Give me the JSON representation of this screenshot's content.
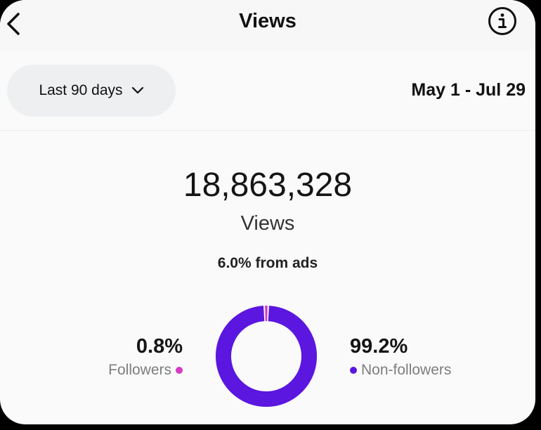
{
  "header": {
    "title": "Views",
    "back_icon": "chevron-left-icon",
    "info_icon": "info-icon"
  },
  "filter": {
    "range_label": "Last 90 days",
    "date_range": "May 1 - Jul 29"
  },
  "summary": {
    "total": "18,863,328",
    "label": "Views",
    "ads_note": "6.0% from ads"
  },
  "breakdown": {
    "followers": {
      "value": "0.8%",
      "label": "Followers",
      "fraction": 0.008,
      "color": "#d63ac4"
    },
    "non_followers": {
      "value": "99.2%",
      "label": "Non-followers",
      "fraction": 0.992,
      "color": "#5b16e0"
    }
  }
}
